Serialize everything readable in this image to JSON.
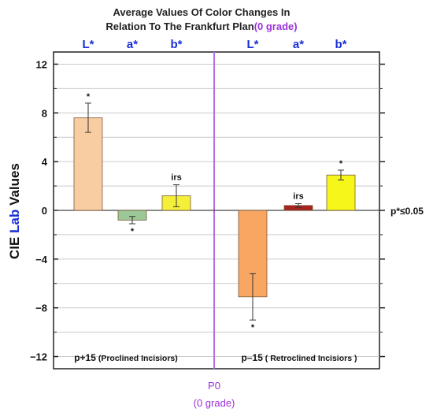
{
  "title_line1": "Average Values Of Color Changes In",
  "title_line2": "Relation To The Frankfurt Plan",
  "title_accent": "(0 grade)",
  "ylabel_prefix": "CIE ",
  "ylabel_accent": "Lab",
  "ylabel_suffix": " Values",
  "right_note": "p*≤0.05",
  "p0_label": "P0",
  "p0_sub": "(0 grade)",
  "group_left": {
    "main": "p+15",
    "sub": " (Proclined Incisiors)"
  },
  "group_right": {
    "main": "p–15",
    "sub": " ( Retroclined Incisiors )"
  },
  "colors": {
    "accent_purple": "#9b30d9",
    "category_blue": "#1a2fd6"
  },
  "chart_data": {
    "type": "bar",
    "title": "Average Values Of Color Changes In Relation To The Frankfurt Plan(0 grade)",
    "ylabel": "CIE Lab Values",
    "ylim": [
      -13,
      13
    ],
    "yticks": [
      -12,
      -8,
      -4,
      0,
      4,
      8,
      12
    ],
    "ytick_labels": [
      "−12",
      "−8",
      "−4",
      "0",
      "4",
      "8",
      "12"
    ],
    "grid": true,
    "categories": [
      "L*",
      "a*",
      "b*",
      "L*",
      "a*",
      "b*"
    ],
    "groups": [
      "p+15 (Proclined Incisiors)",
      "p–15 ( Retroclined Incisiors )"
    ],
    "values": [
      7.6,
      -0.8,
      1.2,
      -7.1,
      0.4,
      2.9
    ],
    "errors": [
      1.2,
      0.3,
      0.9,
      1.9,
      0.15,
      0.4
    ],
    "annotations": [
      "*",
      "*",
      "irs",
      "*",
      "irs",
      "*"
    ],
    "bar_colors": [
      "#f9cda2",
      "#9bc896",
      "#f4f03a",
      "#f8a662",
      "#a7231d",
      "#f6f61a"
    ]
  }
}
